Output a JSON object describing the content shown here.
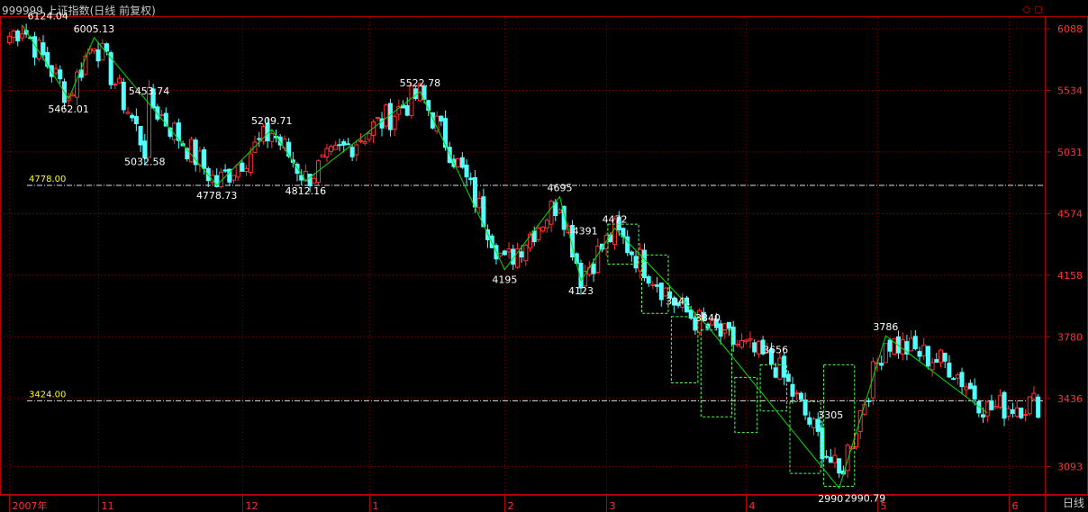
{
  "header": {
    "title": "999999 上证指数(日线 前复权)",
    "period_label": "日线",
    "window_controls": "◇ ◻"
  },
  "colors": {
    "up": "#ff3232",
    "down": "#54ffff",
    "zigzag": "#00e000",
    "grid": "#7a0000",
    "axis_text": "#ff3232",
    "peak_label": "#ffffff",
    "level_label": "#ffff00",
    "box": "#55ff55"
  },
  "chart_data": {
    "type": "candlestick",
    "y_axis": {
      "ticks": [
        3093,
        3436,
        3780,
        4158,
        4574,
        5031,
        5534,
        6088
      ],
      "ylim": [
        2960,
        6190
      ]
    },
    "x_axis": {
      "ticks": [
        {
          "label": "2007年",
          "index": 0
        },
        {
          "label": "11",
          "index": 21
        },
        {
          "label": "12",
          "index": 55
        },
        {
          "label": "1",
          "index": 85
        },
        {
          "label": "2",
          "index": 117
        },
        {
          "label": "3",
          "index": 141
        },
        {
          "label": "4",
          "index": 174
        },
        {
          "label": "5",
          "index": 205
        },
        {
          "label": "6",
          "index": 236
        }
      ]
    },
    "reference_lines": [
      {
        "label": "4778.00",
        "value": 4778
      },
      {
        "label": "3424.00",
        "value": 3424
      }
    ],
    "zigzag": [
      {
        "index": 3,
        "value": 6124.04,
        "label": "6124.04"
      },
      {
        "index": 14,
        "value": 5462.01,
        "label": "5462.01"
      },
      {
        "index": 20,
        "value": 6005.13,
        "label": "6005.13"
      },
      {
        "index": 33,
        "value": 5453.74,
        "label": "5453.74"
      },
      {
        "index": 32,
        "value": 5032.58,
        "label": "5032.58"
      },
      {
        "index": 49,
        "value": 4778.73,
        "label": "4778.73"
      },
      {
        "index": 62,
        "value": 5209.71,
        "label": "5209.71"
      },
      {
        "index": 70,
        "value": 4812.16,
        "label": "4812.16"
      },
      {
        "index": 97,
        "value": 5522.78,
        "label": "5522.78"
      },
      {
        "index": 117,
        "value": 4195,
        "label": "4195"
      },
      {
        "index": 130,
        "value": 4695,
        "label": "4695"
      },
      {
        "index": 135,
        "value": 4123,
        "label": "4123"
      },
      {
        "index": 136,
        "value": 4391,
        "label": "4391"
      },
      {
        "index": 143,
        "value": 4472,
        "label": "4472"
      },
      {
        "index": 158,
        "value": 3941,
        "label": "3941"
      },
      {
        "index": 165,
        "value": 3840,
        "label": "3840"
      },
      {
        "index": 181,
        "value": 3656,
        "label": "3656"
      },
      {
        "index": 194,
        "value": 3305,
        "label": "3305"
      },
      {
        "index": 196,
        "value": 2990.79,
        "label": "2990.79"
      },
      {
        "index": 194,
        "value": 2990,
        "label": "2990"
      },
      {
        "index": 207,
        "value": 3786,
        "label": "3786"
      }
    ],
    "zigzag_line": [
      [
        3,
        6124
      ],
      [
        14,
        5462
      ],
      [
        20,
        6005
      ],
      [
        49,
        4779
      ],
      [
        62,
        5210
      ],
      [
        70,
        4812
      ],
      [
        97,
        5523
      ],
      [
        117,
        4195
      ],
      [
        130,
        4695
      ],
      [
        135,
        4123
      ],
      [
        143,
        4472
      ],
      [
        165,
        3840
      ],
      [
        196,
        2991
      ],
      [
        207,
        3786
      ],
      [
        231,
        3360
      ]
    ],
    "boxes": [
      {
        "i0": 142,
        "i1": 148,
        "hi": 4500,
        "lo": 4230
      },
      {
        "i0": 150,
        "i1": 155,
        "hi": 4290,
        "lo": 3920
      },
      {
        "i0": 157,
        "i1": 162,
        "hi": 3900,
        "lo": 3520
      },
      {
        "i0": 164,
        "i1": 170,
        "hi": 3820,
        "lo": 3340
      },
      {
        "i0": 172,
        "i1": 176,
        "hi": 3550,
        "lo": 3260
      },
      {
        "i0": 178,
        "i1": 183,
        "hi": 3620,
        "lo": 3370
      },
      {
        "i0": 185,
        "i1": 191,
        "hi": 3420,
        "lo": 3060
      },
      {
        "i0": 193,
        "i1": 199,
        "hi": 3620,
        "lo": 3000
      }
    ],
    "candle_anchors": [
      [
        0,
        6020
      ],
      [
        3,
        6110
      ],
      [
        14,
        5480
      ],
      [
        20,
        5990
      ],
      [
        32,
        5060
      ],
      [
        33,
        5440
      ],
      [
        49,
        4790
      ],
      [
        62,
        5190
      ],
      [
        70,
        4830
      ],
      [
        97,
        5500
      ],
      [
        107,
        4870
      ],
      [
        117,
        4230
      ],
      [
        130,
        4670
      ],
      [
        135,
        4150
      ],
      [
        143,
        4450
      ],
      [
        158,
        3960
      ],
      [
        165,
        3830
      ],
      [
        181,
        3620
      ],
      [
        196,
        3040
      ],
      [
        207,
        3760
      ],
      [
        222,
        3620
      ],
      [
        231,
        3380
      ],
      [
        240,
        3410
      ]
    ]
  }
}
